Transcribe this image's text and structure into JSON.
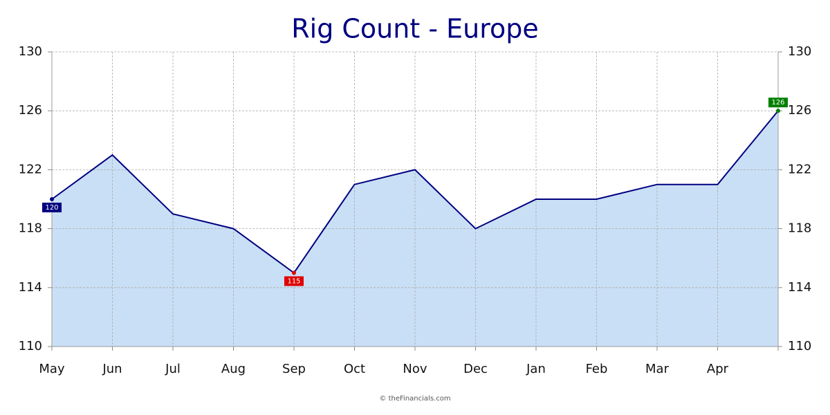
{
  "chart_data": {
    "type": "area",
    "title": "Rig Count - Europe",
    "footer": "© theFinancials.com",
    "categories": [
      "May",
      "Jun",
      "Jul",
      "Aug",
      "Sep",
      "Oct",
      "Nov",
      "Dec",
      "Jan",
      "Feb",
      "Mar",
      "Apr",
      null
    ],
    "values": [
      120,
      123,
      119,
      118,
      115,
      121,
      122,
      118,
      120,
      120,
      121,
      121,
      126
    ],
    "color": "#000080",
    "fill": "#c9dff5",
    "ylim": [
      110,
      130
    ],
    "yticks": [
      110,
      114,
      118,
      122,
      126,
      130
    ],
    "y2lim": [
      110,
      130
    ],
    "y2ticks": [
      110,
      114,
      118,
      122,
      126,
      130
    ],
    "grid": true,
    "label_colors": {
      "first": "#000080",
      "min": "#e00000",
      "max": "#008000"
    }
  }
}
